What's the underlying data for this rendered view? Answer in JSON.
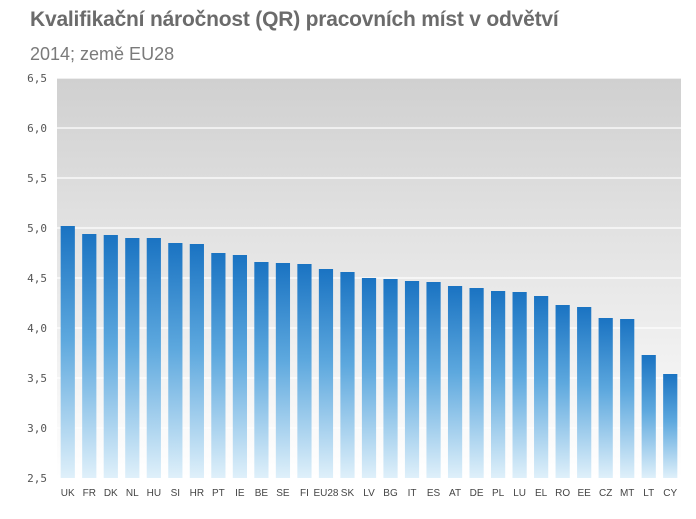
{
  "chart_data": {
    "type": "bar",
    "title": "Kvalifikační náročnost (QR)  pracovních míst v odvětví",
    "subtitle": "2014; země EU28",
    "xlabel": "",
    "ylabel": "",
    "ylim": [
      2.5,
      6.5
    ],
    "yticks": [
      "2,5",
      "3,0",
      "3,5",
      "4,0",
      "4,5",
      "5,0",
      "5,5",
      "6,0",
      "6,5"
    ],
    "grid": true,
    "legend": "none",
    "categories": [
      "UK",
      "FR",
      "DK",
      "NL",
      "HU",
      "SI",
      "HR",
      "PT",
      "IE",
      "BE",
      "SE",
      "FI",
      "EU28",
      "SK",
      "LV",
      "BG",
      "IT",
      "ES",
      "AT",
      "DE",
      "PL",
      "LU",
      "EL",
      "RO",
      "EE",
      "CZ",
      "MT",
      "LT",
      "CY"
    ],
    "values": [
      5.02,
      4.94,
      4.93,
      4.9,
      4.9,
      4.85,
      4.84,
      4.75,
      4.73,
      4.66,
      4.65,
      4.64,
      4.59,
      4.56,
      4.5,
      4.49,
      4.47,
      4.46,
      4.42,
      4.4,
      4.37,
      4.36,
      4.32,
      4.23,
      4.21,
      4.1,
      4.09,
      3.73,
      3.54
    ],
    "colors": {
      "bar_top": "#1a73c2",
      "bar_bottom": "#dff0fa",
      "plot_top": "#d0d0d0",
      "plot_bottom": "#ffffff",
      "grid": "#ffffff"
    }
  }
}
